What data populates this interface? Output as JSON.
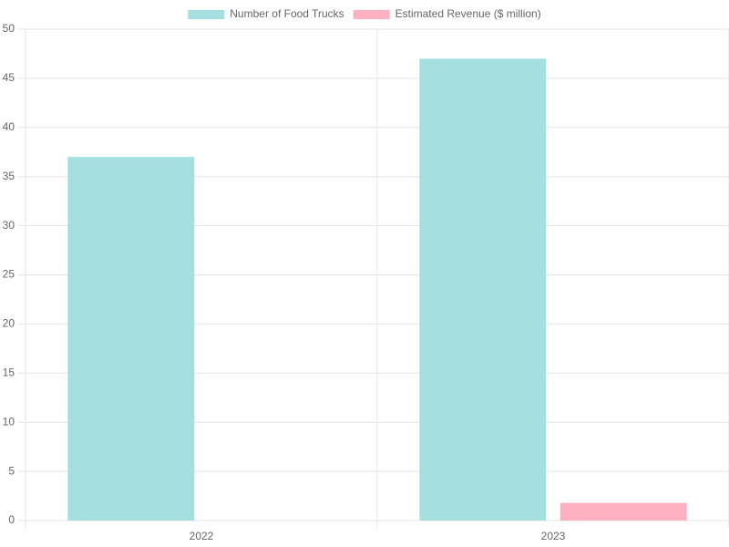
{
  "chart_data": {
    "type": "bar",
    "categories": [
      "2022",
      "2023"
    ],
    "series": [
      {
        "name": "Number of Food Trucks",
        "color": "#a6dfdf",
        "values": [
          37,
          47
        ]
      },
      {
        "name": "Estimated Revenue ($ million)",
        "color": "#ffb1c1",
        "values": [
          null,
          1.8
        ]
      }
    ],
    "ylim": [
      0,
      50
    ],
    "yticks": [
      0,
      5,
      10,
      15,
      20,
      25,
      30,
      35,
      40,
      45,
      50
    ],
    "grid": true,
    "legend": "top"
  }
}
